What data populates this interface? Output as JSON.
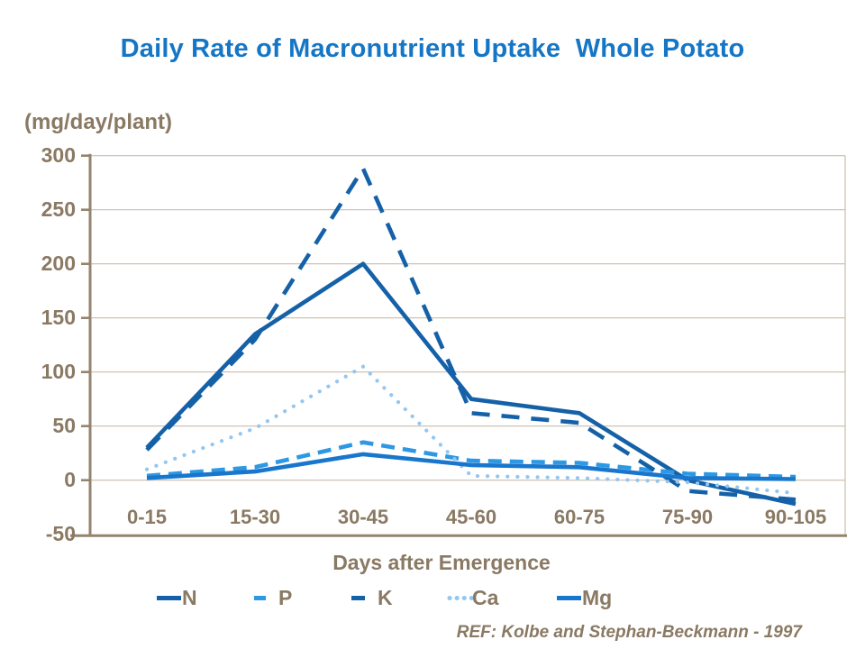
{
  "title": "Daily Rate of Macronutrient Uptake  Whole Potato",
  "ref_note": "REF: Kolbe and Stephan-Beckmann - 1997",
  "colors": {
    "title_blue": "#1576C6",
    "text_brown": "#8A7963",
    "axis_brown": "#94846F",
    "grid_tan": "#C9BDAC",
    "n_line": "#1561A8",
    "p_line": "#2D98E3",
    "k_line": "#1561A8",
    "ca_line": "#93C6F0",
    "mg_line": "#1976CD"
  },
  "chart_data": {
    "type": "line",
    "title": "Daily Rate of Macronutrient Uptake  Whole Potato",
    "ylabel": "(mg/day/plant)",
    "xlabel": "Days after Emergence",
    "categories": [
      "0-15",
      "15-30",
      "30-45",
      "45-60",
      "60-75",
      "75-90",
      "90-105"
    ],
    "y_ticks": [
      300,
      250,
      200,
      150,
      100,
      50,
      0,
      -50
    ],
    "ylim": [
      -50,
      300
    ],
    "grid": true,
    "legend_position": "bottom",
    "series": [
      {
        "name": "N",
        "style": "solid",
        "color": "#1561A8",
        "values": [
          30,
          135,
          200,
          75,
          62,
          0,
          -22
        ]
      },
      {
        "name": "P",
        "style": "dashed",
        "color": "#2D98E3",
        "values": [
          4,
          12,
          35,
          18,
          16,
          6,
          3
        ]
      },
      {
        "name": "K",
        "style": "dashed",
        "color": "#1561A8",
        "values": [
          28,
          130,
          288,
          62,
          53,
          -10,
          -18
        ]
      },
      {
        "name": "Ca",
        "style": "dotted",
        "color": "#93C6F0",
        "values": [
          10,
          48,
          105,
          4,
          2,
          -2,
          -12
        ]
      },
      {
        "name": "Mg",
        "style": "solid",
        "color": "#1976CD",
        "values": [
          2,
          8,
          24,
          14,
          12,
          2,
          1
        ]
      }
    ]
  }
}
